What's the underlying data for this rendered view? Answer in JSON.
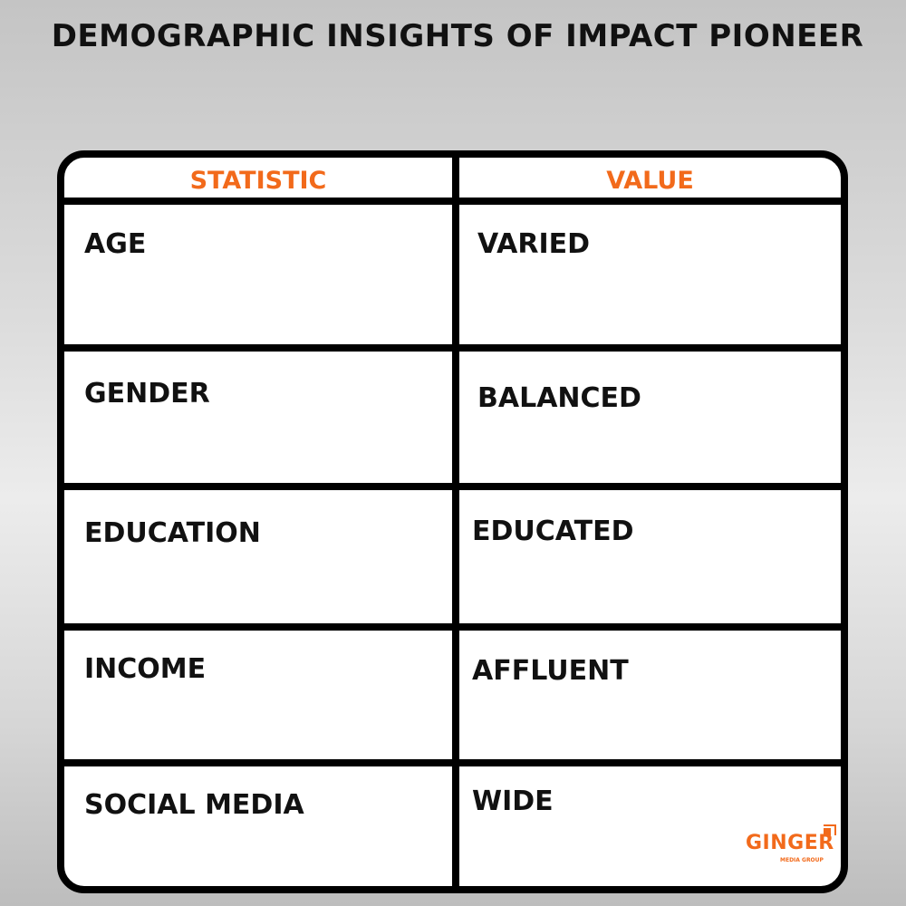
{
  "title": "DEMOGRAPHIC INSIGHTS OF IMPACT PIONEER",
  "table": {
    "headers": [
      "STATISTIC",
      "VALUE"
    ],
    "rows": [
      {
        "statistic": "AGE",
        "value": "VARIED"
      },
      {
        "statistic": "GENDER",
        "value": "BALANCED"
      },
      {
        "statistic": "EDUCATION",
        "value": "EDUCATED"
      },
      {
        "statistic": "INCOME",
        "value": "AFFLUENT"
      },
      {
        "statistic": "SOCIAL MEDIA",
        "value": "WIDE"
      }
    ]
  },
  "logo": {
    "name": "GINGER",
    "subtitle": "MEDIA GROUP"
  },
  "colors": {
    "accent": "#f26a1b",
    "border": "#000000"
  }
}
